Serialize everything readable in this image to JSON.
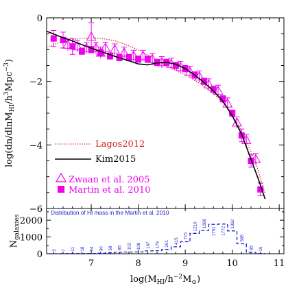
{
  "chart_data": [
    {
      "type": "line",
      "title": "",
      "xlabel": "log(M_HI/h^-2M_⊙)",
      "ylabel": "log(dn/dlnM_HI/h^3Mpc^-3)",
      "xlim": [
        6.05,
        11.1
      ],
      "ylim": [
        -6.0,
        0.0
      ],
      "x_ticks": [
        "7",
        "8",
        "9",
        "10",
        "11"
      ],
      "y_ticks": [
        "0",
        "−2",
        "−4",
        "−6"
      ],
      "grid": false,
      "legend": [
        {
          "label": "Lagos2012",
          "style": "dotted-line",
          "color": "#d62020"
        },
        {
          "label": "Kim2015",
          "style": "solid-line",
          "color": "#000000"
        },
        {
          "label": "Zwaan et al. 2005",
          "style": "open-triangle",
          "color": "#ee00ee"
        },
        {
          "label": "Martin et al. 2010",
          "style": "filled-square",
          "color": "#ee00ee"
        }
      ],
      "series": [
        {
          "name": "Kim2015",
          "color": "#000000",
          "x": [
            6.05,
            6.3,
            6.6,
            6.9,
            7.2,
            7.5,
            7.8,
            8.0,
            8.2,
            8.4,
            8.6,
            8.8,
            9.0,
            9.2,
            9.4,
            9.6,
            9.8,
            10.0,
            10.2,
            10.4,
            10.55,
            10.7
          ],
          "y": [
            -0.42,
            -0.57,
            -0.73,
            -0.9,
            -1.06,
            -1.21,
            -1.35,
            -1.45,
            -1.48,
            -1.42,
            -1.4,
            -1.46,
            -1.6,
            -1.8,
            -2.03,
            -2.3,
            -2.62,
            -3.08,
            -3.66,
            -4.45,
            -5.05,
            -5.7
          ]
        },
        {
          "name": "Lagos2012",
          "color": "#d62020",
          "x": [
            6.05,
            6.3,
            6.6,
            6.9,
            7.2,
            7.5,
            7.8,
            8.1,
            8.4,
            8.7,
            9.0,
            9.3,
            9.6,
            9.9,
            10.2,
            10.5,
            10.7
          ],
          "y": [
            -0.92,
            -0.79,
            -0.69,
            -0.63,
            -0.64,
            -0.72,
            -0.88,
            -1.08,
            -1.35,
            -1.58,
            -1.8,
            -2.05,
            -2.38,
            -2.82,
            -3.55,
            -4.55,
            -5.55
          ]
        },
        {
          "name": "Zwaan et al. 2005",
          "color": "#ee00ee",
          "x": [
            6.5,
            6.7,
            6.9,
            7.0,
            7.1,
            7.2,
            7.3,
            7.5,
            7.7,
            7.9,
            8.1,
            8.3,
            8.5,
            8.7,
            8.9,
            9.1,
            9.3,
            9.5,
            9.7,
            9.9,
            10.1,
            10.3,
            10.5
          ],
          "y": [
            -0.85,
            -0.9,
            -0.95,
            -0.6,
            -0.95,
            -1.1,
            -0.95,
            -1.0,
            -1.1,
            -1.2,
            -1.2,
            -1.3,
            -1.4,
            -1.45,
            -1.55,
            -1.7,
            -1.85,
            -2.1,
            -2.3,
            -2.7,
            -3.3,
            -3.85,
            -4.45
          ]
        },
        {
          "name": "Martin et al. 2010",
          "color": "#ee00ee",
          "x": [
            6.2,
            6.4,
            6.6,
            6.8,
            7.0,
            7.2,
            7.4,
            7.6,
            7.8,
            8.0,
            8.2,
            8.4,
            8.6,
            8.8,
            9.0,
            9.2,
            9.4,
            9.6,
            9.8,
            10.0,
            10.2,
            10.4,
            10.6
          ],
          "y": [
            -0.65,
            -0.7,
            -0.9,
            -1.05,
            -1.0,
            -1.1,
            -1.2,
            -1.25,
            -1.25,
            -1.3,
            -1.3,
            -1.4,
            -1.4,
            -1.5,
            -1.6,
            -1.8,
            -2.0,
            -2.25,
            -2.55,
            -3.0,
            -3.7,
            -4.5,
            -5.4
          ]
        }
      ]
    },
    {
      "type": "bar",
      "title": "Distribution of HI mass in the Martin et al. 2010",
      "xlabel": "log(M_HI/h^-2M_⊙)",
      "ylabel": "N_galaxies",
      "xlim": [
        6.05,
        11.1
      ],
      "ylim": [
        0,
        2700
      ],
      "y_ticks": [
        "0",
        "1000",
        "2000"
      ],
      "style": "dashed-step",
      "color": "#1a1acc",
      "categories": [
        "6.2",
        "6.4",
        "6.6",
        "6.8",
        "7.0",
        "7.2",
        "7.4",
        "7.6",
        "7.8",
        "8.0",
        "8.2",
        "8.4",
        "8.6",
        "8.8",
        "9.0",
        "9.2",
        "9.4",
        "9.6",
        "9.8",
        "10.0",
        "10.2",
        "10.4",
        "10.6"
      ],
      "values": [
        3,
        7,
        11,
        18,
        14,
        30,
        59,
        85,
        102,
        108,
        167,
        179,
        261,
        415,
        715,
        1216,
        1386,
        1751,
        1772,
        1362,
        595,
        85,
        16
      ],
      "labels": [
        "3",
        "7",
        "11",
        "18",
        "14",
        "30",
        "59",
        "85",
        "102",
        "108",
        "167",
        "179",
        "261",
        "415",
        "715",
        "1216",
        "1386",
        "1751",
        "1772",
        "1362",
        "595",
        "85",
        "16"
      ]
    }
  ]
}
